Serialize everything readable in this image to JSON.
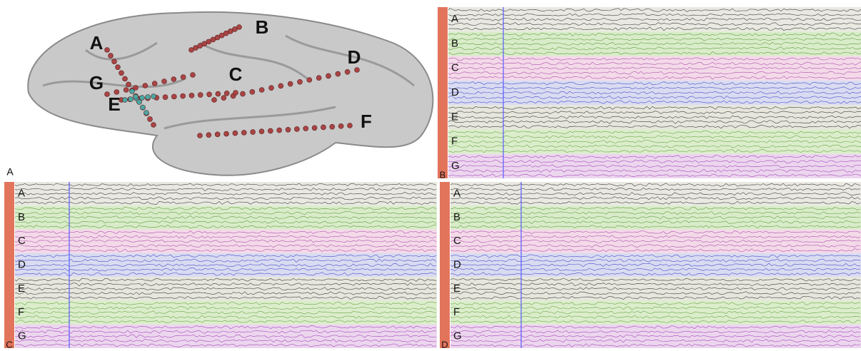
{
  "brain": {
    "label": "A",
    "electrodes": [
      "A",
      "B",
      "C",
      "D",
      "E",
      "F",
      "G"
    ]
  },
  "eeg_panels": [
    {
      "label": "B",
      "channels": [
        "A",
        "B",
        "C",
        "D",
        "E",
        "F",
        "G"
      ]
    },
    {
      "label": "C",
      "channels": [
        "A",
        "B",
        "C",
        "D",
        "E",
        "F",
        "G"
      ]
    },
    {
      "label": "D",
      "channels": [
        "A",
        "B",
        "C",
        "D",
        "E",
        "F",
        "G"
      ]
    }
  ]
}
